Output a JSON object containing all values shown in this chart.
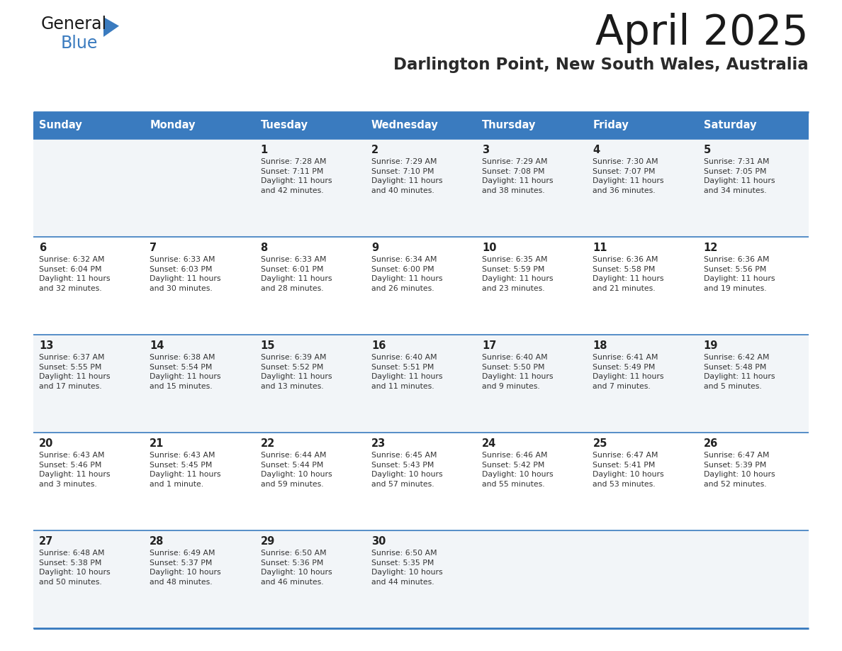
{
  "title": "April 2025",
  "subtitle": "Darlington Point, New South Wales, Australia",
  "days_of_week": [
    "Sunday",
    "Monday",
    "Tuesday",
    "Wednesday",
    "Thursday",
    "Friday",
    "Saturday"
  ],
  "header_bg_color": "#3a7bbf",
  "header_text_color": "#ffffff",
  "cell_bg_light": "#f2f5f8",
  "cell_bg_white": "#ffffff",
  "border_color": "#3a7bbf",
  "title_color": "#1a1a1a",
  "subtitle_color": "#2a2a2a",
  "day_number_color": "#222222",
  "cell_text_color": "#333333",
  "logo_black": "#1a1a1a",
  "logo_blue": "#3a7bbf",
  "calendar_data": [
    [
      {
        "day": "",
        "info": ""
      },
      {
        "day": "",
        "info": ""
      },
      {
        "day": "1",
        "info": "Sunrise: 7:28 AM\nSunset: 7:11 PM\nDaylight: 11 hours\nand 42 minutes."
      },
      {
        "day": "2",
        "info": "Sunrise: 7:29 AM\nSunset: 7:10 PM\nDaylight: 11 hours\nand 40 minutes."
      },
      {
        "day": "3",
        "info": "Sunrise: 7:29 AM\nSunset: 7:08 PM\nDaylight: 11 hours\nand 38 minutes."
      },
      {
        "day": "4",
        "info": "Sunrise: 7:30 AM\nSunset: 7:07 PM\nDaylight: 11 hours\nand 36 minutes."
      },
      {
        "day": "5",
        "info": "Sunrise: 7:31 AM\nSunset: 7:05 PM\nDaylight: 11 hours\nand 34 minutes."
      }
    ],
    [
      {
        "day": "6",
        "info": "Sunrise: 6:32 AM\nSunset: 6:04 PM\nDaylight: 11 hours\nand 32 minutes."
      },
      {
        "day": "7",
        "info": "Sunrise: 6:33 AM\nSunset: 6:03 PM\nDaylight: 11 hours\nand 30 minutes."
      },
      {
        "day": "8",
        "info": "Sunrise: 6:33 AM\nSunset: 6:01 PM\nDaylight: 11 hours\nand 28 minutes."
      },
      {
        "day": "9",
        "info": "Sunrise: 6:34 AM\nSunset: 6:00 PM\nDaylight: 11 hours\nand 26 minutes."
      },
      {
        "day": "10",
        "info": "Sunrise: 6:35 AM\nSunset: 5:59 PM\nDaylight: 11 hours\nand 23 minutes."
      },
      {
        "day": "11",
        "info": "Sunrise: 6:36 AM\nSunset: 5:58 PM\nDaylight: 11 hours\nand 21 minutes."
      },
      {
        "day": "12",
        "info": "Sunrise: 6:36 AM\nSunset: 5:56 PM\nDaylight: 11 hours\nand 19 minutes."
      }
    ],
    [
      {
        "day": "13",
        "info": "Sunrise: 6:37 AM\nSunset: 5:55 PM\nDaylight: 11 hours\nand 17 minutes."
      },
      {
        "day": "14",
        "info": "Sunrise: 6:38 AM\nSunset: 5:54 PM\nDaylight: 11 hours\nand 15 minutes."
      },
      {
        "day": "15",
        "info": "Sunrise: 6:39 AM\nSunset: 5:52 PM\nDaylight: 11 hours\nand 13 minutes."
      },
      {
        "day": "16",
        "info": "Sunrise: 6:40 AM\nSunset: 5:51 PM\nDaylight: 11 hours\nand 11 minutes."
      },
      {
        "day": "17",
        "info": "Sunrise: 6:40 AM\nSunset: 5:50 PM\nDaylight: 11 hours\nand 9 minutes."
      },
      {
        "day": "18",
        "info": "Sunrise: 6:41 AM\nSunset: 5:49 PM\nDaylight: 11 hours\nand 7 minutes."
      },
      {
        "day": "19",
        "info": "Sunrise: 6:42 AM\nSunset: 5:48 PM\nDaylight: 11 hours\nand 5 minutes."
      }
    ],
    [
      {
        "day": "20",
        "info": "Sunrise: 6:43 AM\nSunset: 5:46 PM\nDaylight: 11 hours\nand 3 minutes."
      },
      {
        "day": "21",
        "info": "Sunrise: 6:43 AM\nSunset: 5:45 PM\nDaylight: 11 hours\nand 1 minute."
      },
      {
        "day": "22",
        "info": "Sunrise: 6:44 AM\nSunset: 5:44 PM\nDaylight: 10 hours\nand 59 minutes."
      },
      {
        "day": "23",
        "info": "Sunrise: 6:45 AM\nSunset: 5:43 PM\nDaylight: 10 hours\nand 57 minutes."
      },
      {
        "day": "24",
        "info": "Sunrise: 6:46 AM\nSunset: 5:42 PM\nDaylight: 10 hours\nand 55 minutes."
      },
      {
        "day": "25",
        "info": "Sunrise: 6:47 AM\nSunset: 5:41 PM\nDaylight: 10 hours\nand 53 minutes."
      },
      {
        "day": "26",
        "info": "Sunrise: 6:47 AM\nSunset: 5:39 PM\nDaylight: 10 hours\nand 52 minutes."
      }
    ],
    [
      {
        "day": "27",
        "info": "Sunrise: 6:48 AM\nSunset: 5:38 PM\nDaylight: 10 hours\nand 50 minutes."
      },
      {
        "day": "28",
        "info": "Sunrise: 6:49 AM\nSunset: 5:37 PM\nDaylight: 10 hours\nand 48 minutes."
      },
      {
        "day": "29",
        "info": "Sunrise: 6:50 AM\nSunset: 5:36 PM\nDaylight: 10 hours\nand 46 minutes."
      },
      {
        "day": "30",
        "info": "Sunrise: 6:50 AM\nSunset: 5:35 PM\nDaylight: 10 hours\nand 44 minutes."
      },
      {
        "day": "",
        "info": ""
      },
      {
        "day": "",
        "info": ""
      },
      {
        "day": "",
        "info": ""
      }
    ]
  ]
}
